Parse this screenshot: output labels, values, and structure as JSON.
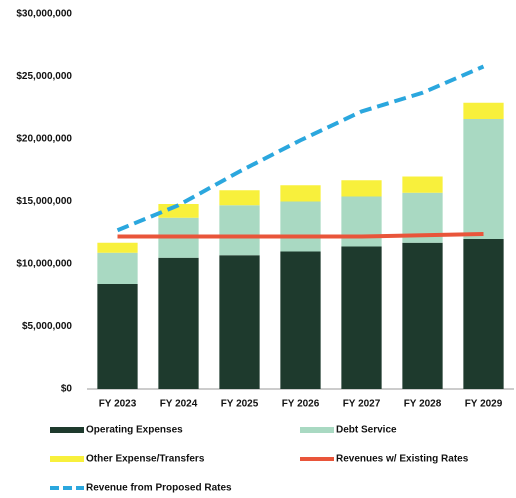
{
  "chart_data": {
    "type": "bar",
    "stacked": true,
    "categories": [
      "FY 2023",
      "FY 2024",
      "FY 2025",
      "FY 2026",
      "FY 2027",
      "FY 2028",
      "FY 2029"
    ],
    "series": [
      {
        "name": "Operating Expenses",
        "type": "bar",
        "color": "#1e3a2d",
        "values": [
          8.4,
          10.5,
          10.7,
          11.0,
          11.4,
          11.7,
          12.0
        ]
      },
      {
        "name": "Debt Service",
        "type": "bar",
        "color": "#a9d9c2",
        "values": [
          2.5,
          3.2,
          4.0,
          4.0,
          4.0,
          4.0,
          9.6
        ]
      },
      {
        "name": "Other Expense/Transfers",
        "type": "bar",
        "color": "#f8f03c",
        "values": [
          0.8,
          1.1,
          1.2,
          1.3,
          1.3,
          1.3,
          1.3
        ]
      },
      {
        "name": "Revenues w/ Existing Rates",
        "type": "line",
        "color": "#e9553a",
        "dashed": false,
        "values": [
          12.2,
          12.2,
          12.2,
          12.2,
          12.2,
          12.3,
          12.4
        ]
      },
      {
        "name": "Revenue from Proposed Rates",
        "type": "line",
        "color": "#2ba7de",
        "dashed": true,
        "values": [
          12.7,
          14.7,
          17.4,
          19.9,
          22.2,
          23.7,
          25.8
        ]
      }
    ],
    "ylim": [
      0,
      30
    ],
    "yticks": [
      {
        "value": 0,
        "label": "$0"
      },
      {
        "value": 5,
        "label": "$5,000,000"
      },
      {
        "value": 10,
        "label": "$10,000,000"
      },
      {
        "value": 15,
        "label": "$15,000,000"
      },
      {
        "value": 20,
        "label": "$20,000,000"
      },
      {
        "value": 25,
        "label": "$25,000,000"
      },
      {
        "value": 30,
        "label": "$30,000,000"
      }
    ],
    "grid": false
  }
}
